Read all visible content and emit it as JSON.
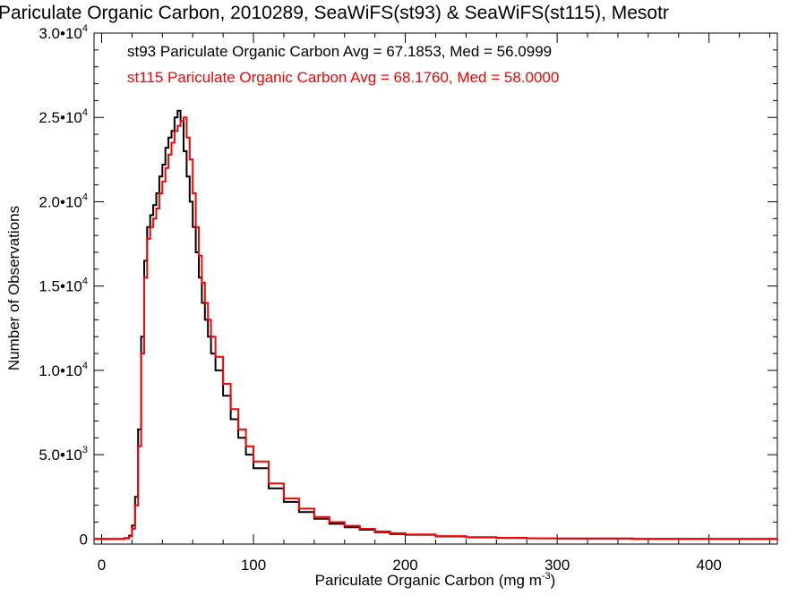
{
  "chart_data": {
    "type": "line",
    "title": "Pariculate Organic Carbon, 2010289, SeaWiFS(st93) & SeaWiFS(st115), Mesotr",
    "xlabel": "Pariculate Organic Carbon (mg m",
    "xlabel_sup": "-3",
    "xlabel_end": ")",
    "ylabel": "Number of Observations",
    "xlim": [
      -5,
      445
    ],
    "ylim": [
      -300,
      30000
    ],
    "grid": false,
    "x_ticks": [
      {
        "value": 0,
        "label": "0"
      },
      {
        "value": 100,
        "label": "100"
      },
      {
        "value": 200,
        "label": "200"
      },
      {
        "value": 300,
        "label": "300"
      },
      {
        "value": 400,
        "label": "400"
      }
    ],
    "y_ticks": [
      {
        "value": 0,
        "mantissa": "0",
        "exp": ""
      },
      {
        "value": 5000,
        "mantissa": "5.0•10",
        "exp": "3"
      },
      {
        "value": 10000,
        "mantissa": "1.0•10",
        "exp": "4"
      },
      {
        "value": 15000,
        "mantissa": "1.5•10",
        "exp": "4"
      },
      {
        "value": 20000,
        "mantissa": "2.0•10",
        "exp": "4"
      },
      {
        "value": 25000,
        "mantissa": "2.5•10",
        "exp": "4"
      },
      {
        "value": 30000,
        "mantissa": "3.0•10",
        "exp": "4"
      }
    ],
    "legend_position": "top-left",
    "series": [
      {
        "name": "st93 Pariculate Organic Carbon Avg = 67.1853, Med = 56.0999",
        "color": "#000000",
        "x": [
          -5,
          15,
          18,
          20,
          22,
          24,
          26,
          28,
          30,
          32,
          34,
          36,
          38,
          40,
          42,
          44,
          46,
          48,
          50,
          52,
          54,
          56,
          58,
          60,
          62,
          64,
          66,
          68,
          70,
          72,
          75,
          80,
          85,
          90,
          95,
          100,
          110,
          120,
          130,
          140,
          150,
          160,
          170,
          180,
          190,
          200,
          220,
          240,
          260,
          280,
          300,
          350,
          400,
          445
        ],
        "values": [
          0,
          50,
          200,
          800,
          2500,
          6500,
          12000,
          16500,
          18500,
          19200,
          19800,
          20500,
          21500,
          22200,
          23200,
          23800,
          24200,
          25000,
          25400,
          24800,
          23000,
          21500,
          20000,
          18500,
          17000,
          15500,
          14000,
          13000,
          12000,
          11000,
          10000,
          8500,
          7100,
          6000,
          5000,
          4200,
          3000,
          2200,
          1600,
          1200,
          900,
          700,
          550,
          400,
          300,
          250,
          150,
          100,
          60,
          40,
          25,
          10,
          5,
          0
        ]
      },
      {
        "name": "st115 Pariculate Organic Carbon Avg = 68.1760, Med = 58.0000",
        "color": "#ff0000",
        "x": [
          -5,
          15,
          18,
          20,
          22,
          24,
          26,
          28,
          30,
          32,
          34,
          36,
          38,
          40,
          42,
          44,
          46,
          48,
          50,
          52,
          54,
          56,
          58,
          60,
          62,
          64,
          66,
          68,
          70,
          72,
          75,
          80,
          85,
          90,
          95,
          100,
          110,
          120,
          130,
          140,
          150,
          160,
          170,
          180,
          190,
          200,
          220,
          240,
          260,
          280,
          300,
          350,
          400,
          445
        ],
        "values": [
          0,
          30,
          150,
          600,
          2000,
          5500,
          11000,
          15500,
          17800,
          18500,
          19000,
          19600,
          20500,
          21200,
          22000,
          22800,
          23500,
          24200,
          24500,
          24800,
          25000,
          23800,
          22500,
          20500,
          18500,
          16800,
          15200,
          14000,
          13000,
          12000,
          10800,
          9200,
          7700,
          6500,
          5500,
          4600,
          3300,
          2400,
          1800,
          1300,
          1000,
          780,
          600,
          450,
          340,
          270,
          170,
          110,
          70,
          45,
          30,
          12,
          6,
          0
        ]
      }
    ]
  }
}
